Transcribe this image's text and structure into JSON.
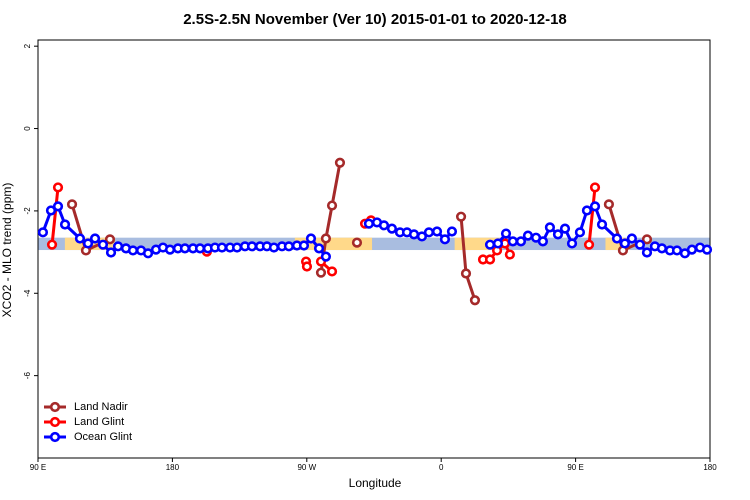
{
  "chart_data": {
    "type": "line",
    "title": "2.5S-2.5N November (Ver 10)   2015-01-01 to 2020-12-18",
    "x_label": "Longitude",
    "y_label": "XCO2 - MLO trend (ppm)",
    "xlim": [
      90,
      540
    ],
    "ylim": [
      -8,
      2.15
    ],
    "xticks": [
      {
        "value": 90,
        "label": "90 E"
      },
      180,
      {
        "value": 270,
        "label": "90 W"
      },
      {
        "value": 360,
        "label": "0"
      },
      {
        "value": 450,
        "label": "90 E"
      },
      {
        "value": 540,
        "label": "180"
      }
    ],
    "yticks": [
      -6,
      -4,
      -2,
      0,
      2
    ],
    "legend": "bottom-left",
    "ocean_band": {
      "color": "#a9bde0",
      "ylim": [
        -2.95,
        -2.65
      ]
    },
    "land_bands": {
      "color": "#ffd98a",
      "ylim": [
        -2.95,
        -2.65
      ],
      "xranges": [
        [
          108,
          141.6
        ],
        [
          262,
          313.7
        ],
        [
          369,
          399
        ],
        [
          470,
          486
        ]
      ]
    },
    "series": [
      {
        "name": "Land Nadir",
        "color": "#a52a2a",
        "x": [
          112.8,
          122.1,
          138.2,
          null,
          279.5,
          282.8,
          286.9,
          292.2,
          null,
          303.6,
          null,
          373.3,
          376.6,
          382.6,
          null,
          472.3,
          481.7,
          497.8
        ],
        "values": [
          -1.84,
          -2.96,
          -2.69,
          null,
          -3.5,
          -2.67,
          -1.87,
          -0.83,
          null,
          -2.77,
          null,
          -2.14,
          -3.52,
          -4.17,
          null,
          -1.84,
          -2.96,
          -2.69
        ]
      },
      {
        "name": "Land Glint",
        "color": "#ff0000",
        "x": [
          99.4,
          103.4,
          null,
          203.1,
          null,
          269.5,
          270.1,
          null,
          279.5,
          286.9,
          null,
          309,
          313,
          null,
          388,
          392.7,
          397.4,
          402.7,
          406,
          null,
          459,
          463
        ],
        "values": [
          -2.82,
          -1.43,
          null,
          -2.99,
          null,
          -3.23,
          -3.35,
          null,
          -3.23,
          -3.47,
          null,
          -2.31,
          -2.23,
          null,
          -3.18,
          -3.18,
          -2.96,
          -2.79,
          -3.06,
          null,
          -2.82,
          -1.43
        ]
      },
      {
        "name": "Ocean Glint",
        "color": "#0000ff",
        "x": [
          93.3,
          98.7,
          103.4,
          108.1,
          118.1,
          123.5,
          128.2,
          133.5,
          138.9,
          143.6,
          148.9,
          153.6,
          159,
          163.7,
          169,
          173.7,
          178.4,
          183.7,
          188.4,
          193.8,
          198.5,
          203.8,
          208.5,
          213.2,
          218.6,
          223.3,
          228.6,
          233.3,
          238.7,
          243.3,
          248,
          253.4,
          258,
          263.4,
          268.1,
          272.8,
          278.2,
          282.8,
          null,
          311.6,
          317,
          321.7,
          327,
          332.4,
          337.1,
          341.8,
          347.1,
          351.8,
          357.2,
          362.5,
          367.2,
          null,
          392.7,
          398,
          403.4,
          408,
          413.4,
          418.1,
          423.5,
          428.1,
          432.8,
          438.2,
          442.9,
          447.6,
          452.9,
          457.6,
          463,
          467.7,
          477.7,
          483,
          487.7,
          493.1,
          497.8,
          503.1,
          507.8,
          513.2,
          517.9,
          523.2,
          527.9,
          533.3,
          538
        ],
        "values": [
          -2.52,
          -1.99,
          -1.89,
          -2.33,
          -2.67,
          -2.79,
          -2.67,
          -2.82,
          -3.01,
          -2.86,
          -2.91,
          -2.96,
          -2.96,
          -3.03,
          -2.94,
          -2.89,
          -2.94,
          -2.91,
          -2.91,
          -2.91,
          -2.91,
          -2.91,
          -2.89,
          -2.89,
          -2.89,
          -2.89,
          -2.86,
          -2.86,
          -2.86,
          -2.86,
          -2.89,
          -2.86,
          -2.86,
          -2.84,
          -2.84,
          -2.67,
          -2.91,
          -3.11,
          null,
          -2.31,
          -2.28,
          -2.35,
          -2.43,
          -2.52,
          -2.52,
          -2.57,
          -2.62,
          -2.52,
          -2.5,
          -2.69,
          -2.5,
          null,
          -2.82,
          -2.79,
          -2.55,
          -2.74,
          -2.74,
          -2.6,
          -2.65,
          -2.74,
          -2.4,
          -2.57,
          -2.43,
          -2.79,
          -2.52,
          -1.99,
          -1.89,
          -2.33,
          -2.67,
          -2.79,
          -2.67,
          -2.82,
          -3.01,
          -2.86,
          -2.91,
          -2.96,
          -2.96,
          -3.03,
          -2.94,
          -2.89,
          -2.94
        ]
      }
    ]
  }
}
